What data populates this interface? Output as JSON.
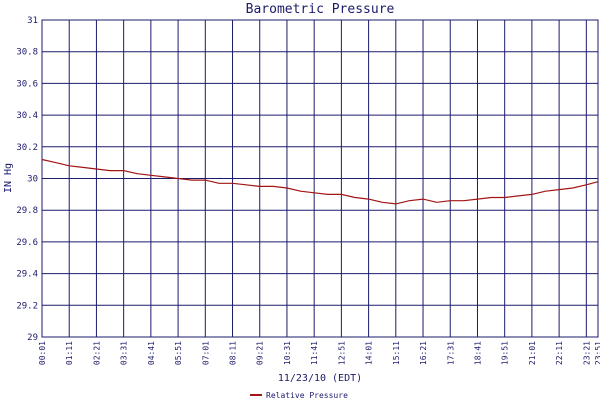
{
  "chart_data": {
    "type": "line",
    "title": "Barometric Pressure",
    "xlabel": "11/23/10 (EDT)",
    "ylabel": "IN Hg",
    "ylim": [
      29,
      31
    ],
    "yticks": [
      "29",
      "29.2",
      "29.4",
      "29.6",
      "29.8",
      "30",
      "30.2",
      "30.4",
      "30.6",
      "30.8",
      "31"
    ],
    "xticks": [
      "00:01",
      "01:11",
      "02:21",
      "03:31",
      "04:41",
      "05:51",
      "07:01",
      "08:11",
      "09:21",
      "10:31",
      "11:41",
      "12:51",
      "14:01",
      "15:11",
      "16:21",
      "17:31",
      "18:41",
      "19:51",
      "21:01",
      "22:11",
      "23:21",
      "23:51"
    ],
    "grid": true,
    "legend_position": "bottom-center",
    "series": [
      {
        "name": "Relative Pressure",
        "color": "#a31515",
        "x": [
          "00:01",
          "00:36",
          "01:11",
          "01:46",
          "02:21",
          "02:56",
          "03:31",
          "04:06",
          "04:41",
          "05:16",
          "05:51",
          "06:26",
          "07:01",
          "07:36",
          "08:11",
          "08:46",
          "09:21",
          "09:56",
          "10:31",
          "11:06",
          "11:41",
          "12:16",
          "12:51",
          "13:26",
          "14:01",
          "14:36",
          "15:11",
          "15:46",
          "16:21",
          "16:56",
          "17:31",
          "18:06",
          "18:41",
          "19:16",
          "19:51",
          "20:26",
          "21:01",
          "21:36",
          "22:11",
          "22:46",
          "23:21",
          "23:51"
        ],
        "values": [
          30.12,
          30.1,
          30.08,
          30.07,
          30.06,
          30.05,
          30.05,
          30.03,
          30.02,
          30.01,
          30.0,
          29.99,
          29.99,
          29.97,
          29.97,
          29.96,
          29.95,
          29.95,
          29.94,
          29.92,
          29.91,
          29.9,
          29.9,
          29.88,
          29.87,
          29.85,
          29.84,
          29.86,
          29.87,
          29.85,
          29.86,
          29.86,
          29.87,
          29.88,
          29.88,
          29.89,
          29.9,
          29.92,
          29.93,
          29.94,
          29.96,
          29.98
        ]
      }
    ]
  }
}
